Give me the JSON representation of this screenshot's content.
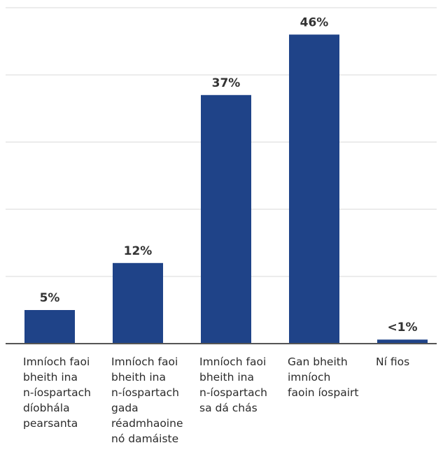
{
  "chart_data": {
    "type": "bar",
    "categories": [
      [
        "Imníoch faoi",
        "bheith ina",
        "n-íospartach",
        "díobhála",
        "pearsanta"
      ],
      [
        "Imníoch faoi",
        "bheith ina",
        "n-íospartach",
        "gada",
        "réadmhaoine",
        "nó damáiste"
      ],
      [
        "Imníoch faoi",
        "bheith ina",
        "n-íospartach",
        "sa dá chás"
      ],
      [
        "Gan bheith",
        "imníoch",
        "faoin íospairt"
      ],
      [
        "Ní fios"
      ]
    ],
    "values": [
      5,
      12,
      37,
      46,
      0.6
    ],
    "data_labels": [
      "5%",
      "12%",
      "37%",
      "46%",
      "<1%"
    ],
    "ylim": [
      0,
      50
    ],
    "gridlines": [
      0,
      10,
      20,
      30,
      40,
      50
    ],
    "bar_color": "#1f4388",
    "grid": true
  }
}
